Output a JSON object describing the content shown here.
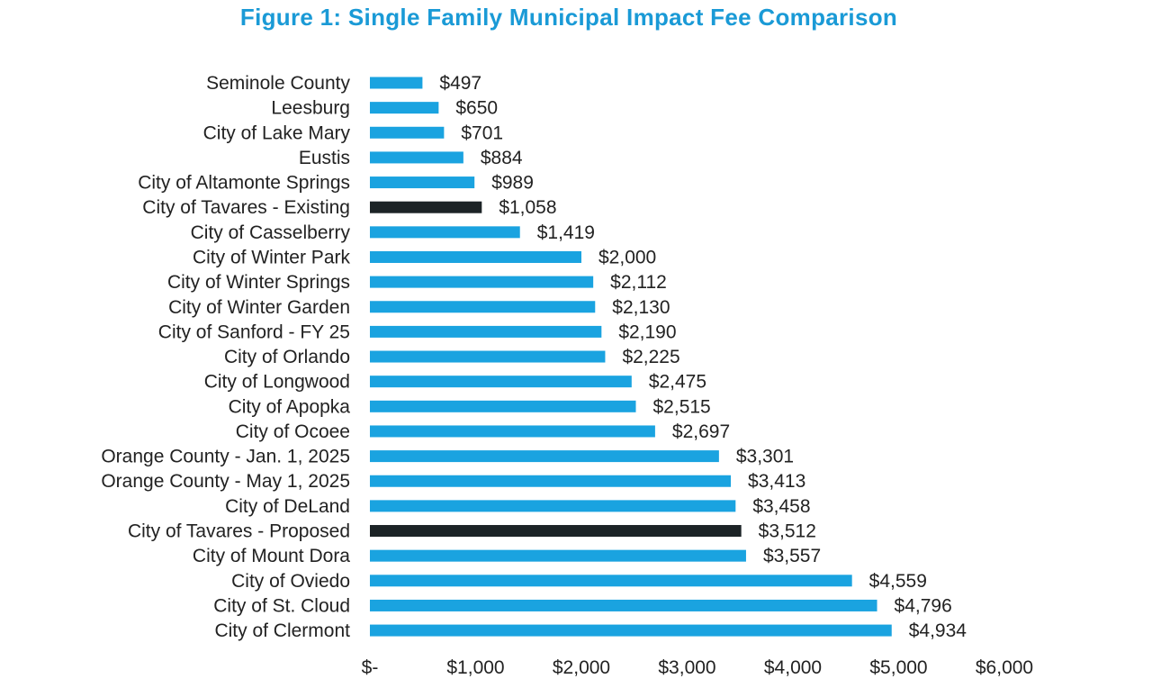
{
  "chart_data": {
    "type": "bar",
    "orientation": "horizontal",
    "title": "Figure 1: Single Family Municipal Impact Fee Comparison",
    "categories": [
      "Seminole County",
      "Leesburg",
      "City of Lake Mary",
      "Eustis",
      "City of Altamonte Springs",
      "City of Tavares - Existing",
      "City of Casselberry",
      "City of Winter Park",
      "City of Winter Springs",
      "City of Winter Garden",
      "City of Sanford - FY 25",
      "City of Orlando",
      "City of Longwood",
      "City of Apopka",
      "City of Ocoee",
      "Orange County - Jan. 1, 2025",
      "Orange County - May 1, 2025",
      "City of DeLand",
      "City of Tavares - Proposed",
      "City of Mount Dora",
      "City of Oviedo",
      "City of St. Cloud",
      "City of Clermont"
    ],
    "values": [
      497,
      650,
      701,
      884,
      989,
      1058,
      1419,
      2000,
      2112,
      2130,
      2190,
      2225,
      2475,
      2515,
      2697,
      3301,
      3413,
      3458,
      3512,
      3557,
      4559,
      4796,
      4934
    ],
    "data_labels": [
      "$497",
      "$650",
      "$701",
      "$884",
      "$989",
      "$1,058",
      "$1,419",
      "$2,000",
      "$2,112",
      "$2,130",
      "$2,190",
      "$2,225",
      "$2,475",
      "$2,515",
      "$2,697",
      "$3,301",
      "$3,413",
      "$3,458",
      "$3,512",
      "$3,557",
      "$4,559",
      "$4,796",
      "$4,934"
    ],
    "highlighted": [
      "City of Tavares - Existing",
      "City of Tavares - Proposed"
    ],
    "xlim": [
      0,
      6000
    ],
    "xticks": [
      0,
      1000,
      2000,
      3000,
      4000,
      5000,
      6000
    ],
    "xtick_labels": [
      "$-",
      "$1,000",
      "$2,000",
      "$3,000",
      "$4,000",
      "$5,000",
      "$6,000"
    ],
    "xlabel": "",
    "ylabel": "",
    "grid": false,
    "legend": "none",
    "colors": {
      "bar": "#1aa3e0",
      "highlight": "#1c2326",
      "title": "#1a9ad6"
    }
  }
}
